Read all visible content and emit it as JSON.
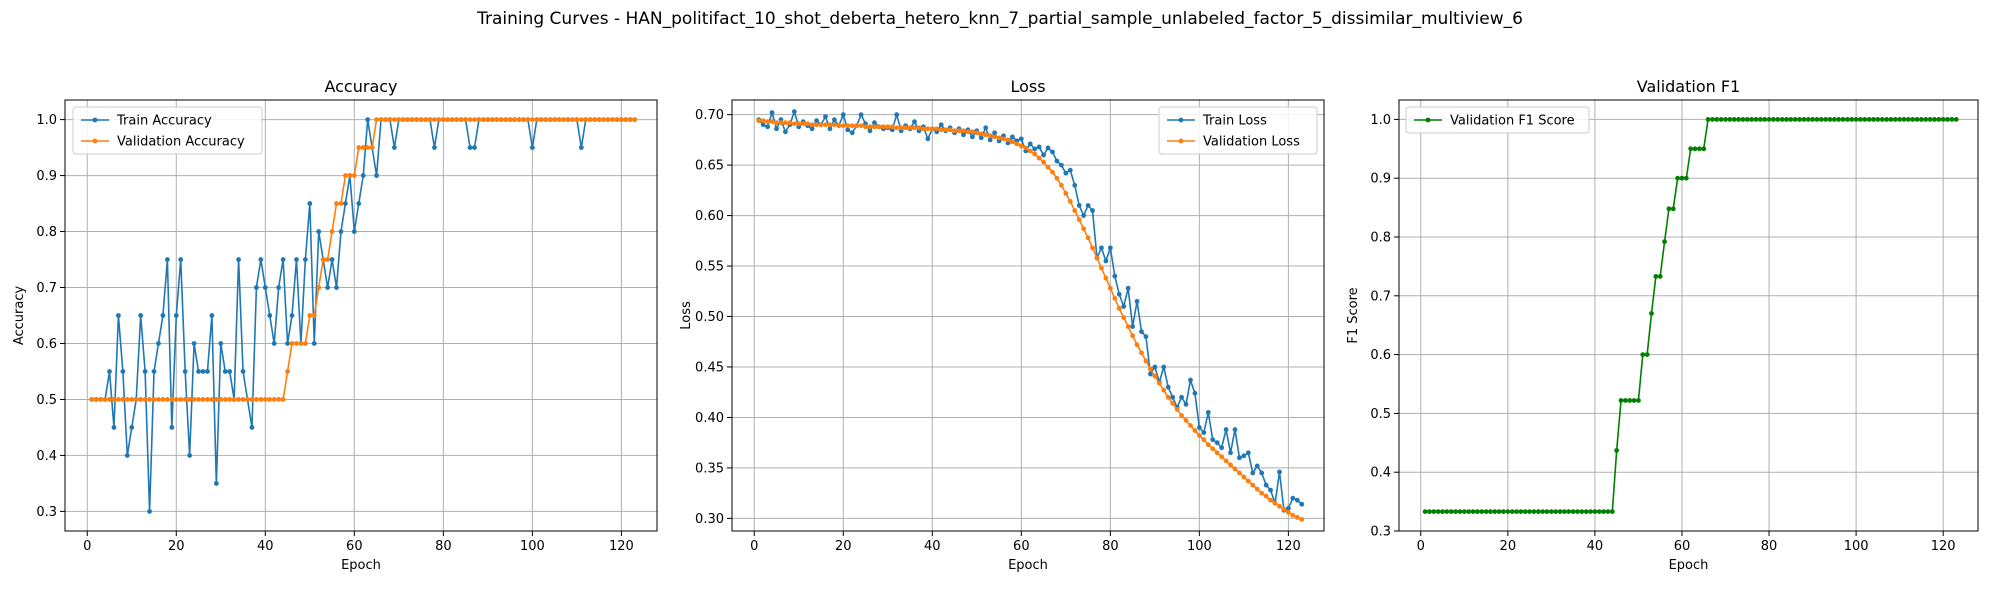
{
  "suptitle": "Training Curves - HAN_politifact_10_shot_deberta_hetero_knn_7_partial_sample_unlabeled_factor_5_dissimilar_multiview_6",
  "colors": {
    "blue": "#1f77b4",
    "orange": "#ff7f0e",
    "green": "#008000",
    "grid": "#b0b0b0"
  },
  "chart_data": [
    {
      "type": "line",
      "title": "Accuracy",
      "xlabel": "Epoch",
      "ylabel": "Accuracy",
      "xlim": [
        -5,
        128
      ],
      "ylim": [
        0.265,
        1.035
      ],
      "xticks": [
        0,
        20,
        40,
        60,
        80,
        100,
        120
      ],
      "xtick_labels": [
        "0",
        "20",
        "40",
        "60",
        "80",
        "100",
        "120"
      ],
      "yticks": [
        0.3,
        0.4,
        0.5,
        0.6,
        0.7,
        0.8,
        0.9,
        1.0
      ],
      "ytick_labels": [
        "0.3",
        "0.4",
        "0.5",
        "0.6",
        "0.7",
        "0.8",
        "0.9",
        "1.0"
      ],
      "grid": true,
      "legend": "upper-left",
      "x": [
        1,
        2,
        3,
        4,
        5,
        6,
        7,
        8,
        9,
        10,
        11,
        12,
        13,
        14,
        15,
        16,
        17,
        18,
        19,
        20,
        21,
        22,
        23,
        24,
        25,
        26,
        27,
        28,
        29,
        30,
        31,
        32,
        33,
        34,
        35,
        36,
        37,
        38,
        39,
        40,
        41,
        42,
        43,
        44,
        45,
        46,
        47,
        48,
        49,
        50,
        51,
        52,
        53,
        54,
        55,
        56,
        57,
        58,
        59,
        60,
        61,
        62,
        63,
        64,
        65,
        66,
        67,
        68,
        69,
        70,
        71,
        72,
        73,
        74,
        75,
        76,
        77,
        78,
        79,
        80,
        81,
        82,
        83,
        84,
        85,
        86,
        87,
        88,
        89,
        90,
        91,
        92,
        93,
        94,
        95,
        96,
        97,
        98,
        99,
        100,
        101,
        102,
        103,
        104,
        105,
        106,
        107,
        108,
        109,
        110,
        111,
        112,
        113,
        114,
        115,
        116,
        117,
        118,
        119,
        120,
        121,
        122,
        123
      ],
      "series": [
        {
          "name": "Train Accuracy",
          "color": "#1f77b4",
          "values": [
            0.5,
            0.5,
            0.5,
            0.5,
            0.55,
            0.45,
            0.65,
            0.55,
            0.4,
            0.45,
            0.5,
            0.65,
            0.55,
            0.3,
            0.55,
            0.6,
            0.65,
            0.75,
            0.45,
            0.65,
            0.75,
            0.55,
            0.4,
            0.6,
            0.55,
            0.55,
            0.55,
            0.65,
            0.35,
            0.6,
            0.55,
            0.55,
            0.5,
            0.75,
            0.55,
            0.5,
            0.45,
            0.7,
            0.75,
            0.7,
            0.65,
            0.6,
            0.7,
            0.75,
            0.6,
            0.65,
            0.75,
            0.6,
            0.75,
            0.85,
            0.6,
            0.8,
            0.75,
            0.7,
            0.75,
            0.7,
            0.8,
            0.85,
            0.9,
            0.8,
            0.85,
            0.9,
            1.0,
            0.95,
            0.9,
            1.0,
            1.0,
            1.0,
            0.95,
            1.0,
            1.0,
            1.0,
            1.0,
            1.0,
            1.0,
            1.0,
            1.0,
            0.95,
            1.0,
            1.0,
            1.0,
            1.0,
            1.0,
            1.0,
            1.0,
            0.95,
            0.95,
            1.0,
            1.0,
            1.0,
            1.0,
            1.0,
            1.0,
            1.0,
            1.0,
            1.0,
            1.0,
            1.0,
            1.0,
            0.95,
            1.0,
            1.0,
            1.0,
            1.0,
            1.0,
            1.0,
            1.0,
            1.0,
            1.0,
            1.0,
            0.95,
            1.0,
            1.0,
            1.0,
            1.0,
            1.0,
            1.0,
            1.0,
            1.0,
            1.0,
            1.0,
            1.0,
            1.0
          ]
        },
        {
          "name": "Validation Accuracy",
          "color": "#ff7f0e",
          "values": [
            0.5,
            0.5,
            0.5,
            0.5,
            0.5,
            0.5,
            0.5,
            0.5,
            0.5,
            0.5,
            0.5,
            0.5,
            0.5,
            0.5,
            0.5,
            0.5,
            0.5,
            0.5,
            0.5,
            0.5,
            0.5,
            0.5,
            0.5,
            0.5,
            0.5,
            0.5,
            0.5,
            0.5,
            0.5,
            0.5,
            0.5,
            0.5,
            0.5,
            0.5,
            0.5,
            0.5,
            0.5,
            0.5,
            0.5,
            0.5,
            0.5,
            0.5,
            0.5,
            0.5,
            0.55,
            0.6,
            0.6,
            0.6,
            0.6,
            0.65,
            0.65,
            0.7,
            0.75,
            0.75,
            0.8,
            0.85,
            0.85,
            0.9,
            0.9,
            0.9,
            0.95,
            0.95,
            0.95,
            0.95,
            1.0,
            1.0,
            1.0,
            1.0,
            1.0,
            1.0,
            1.0,
            1.0,
            1.0,
            1.0,
            1.0,
            1.0,
            1.0,
            1.0,
            1.0,
            1.0,
            1.0,
            1.0,
            1.0,
            1.0,
            1.0,
            1.0,
            1.0,
            1.0,
            1.0,
            1.0,
            1.0,
            1.0,
            1.0,
            1.0,
            1.0,
            1.0,
            1.0,
            1.0,
            1.0,
            1.0,
            1.0,
            1.0,
            1.0,
            1.0,
            1.0,
            1.0,
            1.0,
            1.0,
            1.0,
            1.0,
            1.0,
            1.0,
            1.0,
            1.0,
            1.0,
            1.0,
            1.0,
            1.0,
            1.0,
            1.0,
            1.0,
            1.0,
            1.0
          ]
        }
      ]
    },
    {
      "type": "line",
      "title": "Loss",
      "xlabel": "Epoch",
      "ylabel": "Loss",
      "xlim": [
        -5,
        128
      ],
      "ylim": [
        0.2875,
        0.7145
      ],
      "xticks": [
        0,
        20,
        40,
        60,
        80,
        100,
        120
      ],
      "xtick_labels": [
        "0",
        "20",
        "40",
        "60",
        "80",
        "100",
        "120"
      ],
      "yticks": [
        0.3,
        0.35,
        0.4,
        0.45,
        0.5,
        0.55,
        0.6,
        0.65,
        0.7
      ],
      "ytick_labels": [
        "0.30",
        "0.35",
        "0.40",
        "0.45",
        "0.50",
        "0.55",
        "0.60",
        "0.65",
        "0.70"
      ],
      "grid": true,
      "legend": "upper-right",
      "x": [
        1,
        2,
        3,
        4,
        5,
        6,
        7,
        8,
        9,
        10,
        11,
        12,
        13,
        14,
        15,
        16,
        17,
        18,
        19,
        20,
        21,
        22,
        23,
        24,
        25,
        26,
        27,
        28,
        29,
        30,
        31,
        32,
        33,
        34,
        35,
        36,
        37,
        38,
        39,
        40,
        41,
        42,
        43,
        44,
        45,
        46,
        47,
        48,
        49,
        50,
        51,
        52,
        53,
        54,
        55,
        56,
        57,
        58,
        59,
        60,
        61,
        62,
        63,
        64,
        65,
        66,
        67,
        68,
        69,
        70,
        71,
        72,
        73,
        74,
        75,
        76,
        77,
        78,
        79,
        80,
        81,
        82,
        83,
        84,
        85,
        86,
        87,
        88,
        89,
        90,
        91,
        92,
        93,
        94,
        95,
        96,
        97,
        98,
        99,
        100,
        101,
        102,
        103,
        104,
        105,
        106,
        107,
        108,
        109,
        110,
        111,
        112,
        113,
        114,
        115,
        116,
        117,
        118,
        119,
        120,
        121,
        122,
        123
      ],
      "series": [
        {
          "name": "Train Loss",
          "color": "#1f77b4",
          "values": [
            0.695,
            0.69,
            0.688,
            0.702,
            0.686,
            0.695,
            0.683,
            0.69,
            0.703,
            0.688,
            0.693,
            0.689,
            0.686,
            0.694,
            0.69,
            0.698,
            0.686,
            0.695,
            0.689,
            0.7,
            0.685,
            0.682,
            0.689,
            0.7,
            0.691,
            0.684,
            0.692,
            0.688,
            0.686,
            0.687,
            0.685,
            0.7,
            0.684,
            0.689,
            0.686,
            0.693,
            0.684,
            0.688,
            0.676,
            0.686,
            0.683,
            0.69,
            0.684,
            0.687,
            0.682,
            0.686,
            0.68,
            0.685,
            0.678,
            0.684,
            0.677,
            0.687,
            0.675,
            0.682,
            0.674,
            0.679,
            0.672,
            0.678,
            0.674,
            0.676,
            0.664,
            0.671,
            0.666,
            0.668,
            0.66,
            0.667,
            0.663,
            0.654,
            0.65,
            0.642,
            0.645,
            0.63,
            0.61,
            0.6,
            0.61,
            0.605,
            0.558,
            0.568,
            0.555,
            0.568,
            0.54,
            0.522,
            0.51,
            0.528,
            0.49,
            0.515,
            0.485,
            0.48,
            0.443,
            0.45,
            0.435,
            0.45,
            0.43,
            0.42,
            0.41,
            0.42,
            0.413,
            0.437,
            0.424,
            0.39,
            0.385,
            0.405,
            0.378,
            0.375,
            0.37,
            0.388,
            0.365,
            0.388,
            0.36,
            0.362,
            0.365,
            0.345,
            0.352,
            0.345,
            0.333,
            0.328,
            0.315,
            0.346,
            0.308,
            0.31,
            0.32,
            0.318,
            0.314
          ]
        },
        {
          "name": "Validation Loss",
          "color": "#ff7f0e",
          "values": [
            0.694,
            0.694,
            0.693,
            0.693,
            0.692,
            0.692,
            0.692,
            0.692,
            0.691,
            0.691,
            0.691,
            0.691,
            0.69,
            0.69,
            0.69,
            0.69,
            0.69,
            0.69,
            0.689,
            0.689,
            0.689,
            0.689,
            0.689,
            0.689,
            0.688,
            0.688,
            0.688,
            0.688,
            0.688,
            0.688,
            0.688,
            0.687,
            0.687,
            0.687,
            0.687,
            0.687,
            0.687,
            0.686,
            0.686,
            0.686,
            0.686,
            0.685,
            0.685,
            0.685,
            0.684,
            0.684,
            0.684,
            0.683,
            0.683,
            0.682,
            0.681,
            0.68,
            0.679,
            0.678,
            0.677,
            0.676,
            0.675,
            0.673,
            0.671,
            0.669,
            0.667,
            0.664,
            0.661,
            0.657,
            0.653,
            0.648,
            0.643,
            0.637,
            0.63,
            0.622,
            0.614,
            0.605,
            0.596,
            0.587,
            0.578,
            0.568,
            0.558,
            0.548,
            0.538,
            0.528,
            0.518,
            0.508,
            0.499,
            0.49,
            0.481,
            0.472,
            0.464,
            0.456,
            0.448,
            0.441,
            0.434,
            0.427,
            0.42,
            0.414,
            0.408,
            0.402,
            0.397,
            0.392,
            0.387,
            0.382,
            0.378,
            0.373,
            0.369,
            0.365,
            0.361,
            0.357,
            0.353,
            0.349,
            0.345,
            0.341,
            0.337,
            0.333,
            0.329,
            0.325,
            0.322,
            0.318,
            0.315,
            0.312,
            0.309,
            0.306,
            0.303,
            0.301,
            0.299
          ]
        }
      ]
    },
    {
      "type": "line",
      "title": "Validation F1",
      "xlabel": "Epoch",
      "ylabel": "F1 Score",
      "xlim": [
        -5,
        128
      ],
      "ylim": [
        0.3,
        1.033
      ],
      "xticks": [
        0,
        20,
        40,
        60,
        80,
        100,
        120
      ],
      "xtick_labels": [
        "0",
        "20",
        "40",
        "60",
        "80",
        "100",
        "120"
      ],
      "yticks": [
        0.3,
        0.4,
        0.5,
        0.6,
        0.7,
        0.8,
        0.9,
        1.0
      ],
      "ytick_labels": [
        "0.3",
        "0.4",
        "0.5",
        "0.6",
        "0.7",
        "0.8",
        "0.9",
        "1.0"
      ],
      "grid": true,
      "legend": "upper-left",
      "x": [
        1,
        2,
        3,
        4,
        5,
        6,
        7,
        8,
        9,
        10,
        11,
        12,
        13,
        14,
        15,
        16,
        17,
        18,
        19,
        20,
        21,
        22,
        23,
        24,
        25,
        26,
        27,
        28,
        29,
        30,
        31,
        32,
        33,
        34,
        35,
        36,
        37,
        38,
        39,
        40,
        41,
        42,
        43,
        44,
        45,
        46,
        47,
        48,
        49,
        50,
        51,
        52,
        53,
        54,
        55,
        56,
        57,
        58,
        59,
        60,
        61,
        62,
        63,
        64,
        65,
        66,
        67,
        68,
        69,
        70,
        71,
        72,
        73,
        74,
        75,
        76,
        77,
        78,
        79,
        80,
        81,
        82,
        83,
        84,
        85,
        86,
        87,
        88,
        89,
        90,
        91,
        92,
        93,
        94,
        95,
        96,
        97,
        98,
        99,
        100,
        101,
        102,
        103,
        104,
        105,
        106,
        107,
        108,
        109,
        110,
        111,
        112,
        113,
        114,
        115,
        116,
        117,
        118,
        119,
        120,
        121,
        122,
        123
      ],
      "series": [
        {
          "name": "Validation F1 Score",
          "color": "#008000",
          "values": [
            0.333,
            0.333,
            0.333,
            0.333,
            0.333,
            0.333,
            0.333,
            0.333,
            0.333,
            0.333,
            0.333,
            0.333,
            0.333,
            0.333,
            0.333,
            0.333,
            0.333,
            0.333,
            0.333,
            0.333,
            0.333,
            0.333,
            0.333,
            0.333,
            0.333,
            0.333,
            0.333,
            0.333,
            0.333,
            0.333,
            0.333,
            0.333,
            0.333,
            0.333,
            0.333,
            0.333,
            0.333,
            0.333,
            0.333,
            0.333,
            0.333,
            0.333,
            0.333,
            0.333,
            0.437,
            0.522,
            0.522,
            0.522,
            0.522,
            0.522,
            0.6,
            0.6,
            0.67,
            0.733,
            0.733,
            0.792,
            0.848,
            0.848,
            0.9,
            0.9,
            0.9,
            0.95,
            0.95,
            0.95,
            0.95,
            1.0,
            1.0,
            1.0,
            1.0,
            1.0,
            1.0,
            1.0,
            1.0,
            1.0,
            1.0,
            1.0,
            1.0,
            1.0,
            1.0,
            1.0,
            1.0,
            1.0,
            1.0,
            1.0,
            1.0,
            1.0,
            1.0,
            1.0,
            1.0,
            1.0,
            1.0,
            1.0,
            1.0,
            1.0,
            1.0,
            1.0,
            1.0,
            1.0,
            1.0,
            1.0,
            1.0,
            1.0,
            1.0,
            1.0,
            1.0,
            1.0,
            1.0,
            1.0,
            1.0,
            1.0,
            1.0,
            1.0,
            1.0,
            1.0,
            1.0,
            1.0,
            1.0,
            1.0,
            1.0,
            1.0,
            1.0,
            1.0,
            1.0
          ]
        }
      ]
    }
  ]
}
